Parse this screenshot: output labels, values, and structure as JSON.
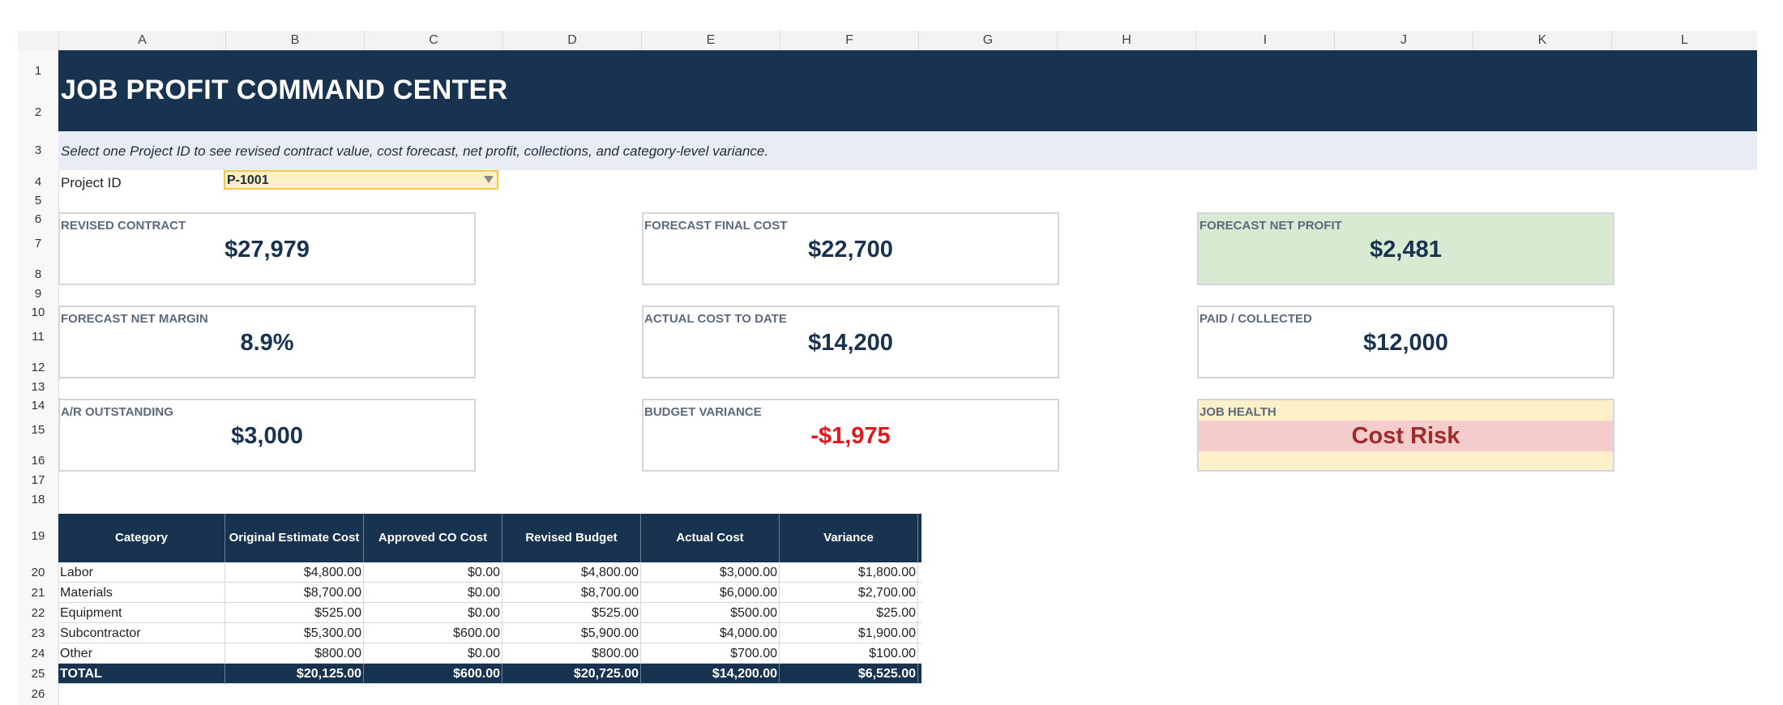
{
  "columns": [
    "A",
    "B",
    "C",
    "D",
    "E",
    "F",
    "G",
    "H",
    "I",
    "J",
    "K",
    "L"
  ],
  "rows": [
    "1",
    "2",
    "3",
    "4",
    "5",
    "6",
    "7",
    "8",
    "9",
    "10",
    "11",
    "12",
    "13",
    "14",
    "15",
    "16",
    "17",
    "18",
    "19",
    "20",
    "21",
    "22",
    "23",
    "24",
    "25",
    "26"
  ],
  "banner": {
    "title": "JOB PROFIT COMMAND CENTER"
  },
  "subtitle": "Select one Project ID to see revised contract value, cost forecast, net profit, collections, and category-level variance.",
  "project": {
    "label": "Project ID",
    "selected": "P-1001"
  },
  "kpis": {
    "revised_contract": {
      "label": "REVISED CONTRACT",
      "value": "$27,979"
    },
    "forecast_final_cost": {
      "label": "FORECAST FINAL COST",
      "value": "$22,700"
    },
    "forecast_net_profit": {
      "label": "FORECAST NET PROFIT",
      "value": "$2,481"
    },
    "forecast_net_margin": {
      "label": "FORECAST NET MARGIN",
      "value": "8.9%"
    },
    "actual_cost_to_date": {
      "label": "ACTUAL COST TO DATE",
      "value": "$14,200"
    },
    "paid_collected": {
      "label": "PAID / COLLECTED",
      "value": "$12,000"
    },
    "ar_outstanding": {
      "label": "A/R OUTSTANDING",
      "value": "$3,000"
    },
    "budget_variance": {
      "label": "BUDGET VARIANCE",
      "value": "-$1,975"
    },
    "job_health": {
      "label": "JOB HEALTH",
      "value": "Cost Risk"
    }
  },
  "table": {
    "headers": [
      "Category",
      "Original Estimate Cost",
      "Approved CO Cost",
      "Revised Budget",
      "Actual Cost",
      "Variance"
    ],
    "rows": [
      [
        "Labor",
        "$4,800.00",
        "$0.00",
        "$4,800.00",
        "$3,000.00",
        "$1,800.00"
      ],
      [
        "Materials",
        "$8,700.00",
        "$0.00",
        "$8,700.00",
        "$6,000.00",
        "$2,700.00"
      ],
      [
        "Equipment",
        "$525.00",
        "$0.00",
        "$525.00",
        "$500.00",
        "$25.00"
      ],
      [
        "Subcontractor",
        "$5,300.00",
        "$600.00",
        "$5,900.00",
        "$4,000.00",
        "$1,900.00"
      ],
      [
        "Other",
        "$800.00",
        "$0.00",
        "$800.00",
        "$700.00",
        "$100.00"
      ]
    ],
    "total": [
      "TOTAL",
      "$20,125.00",
      "$600.00",
      "$20,725.00",
      "$14,200.00",
      "$6,525.00"
    ]
  },
  "colors": {
    "navy": "#183350",
    "green_fill": "#d9ead3",
    "negative": "#e8141b",
    "risk_text": "#a12b2b",
    "risk_fill": "#f4cccc",
    "warn_fill": "#fdefc8"
  }
}
